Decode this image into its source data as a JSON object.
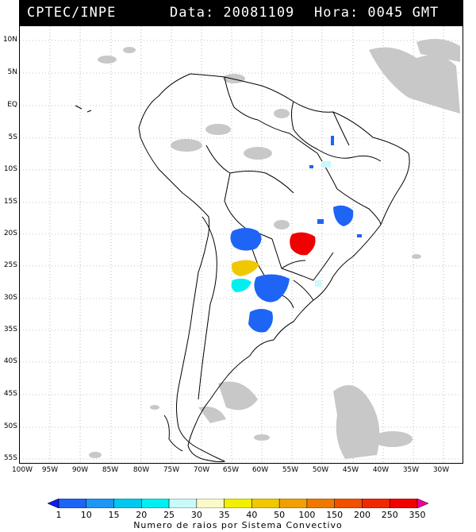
{
  "header": {
    "source": "CPTEC/INPE",
    "date_label": "Data: 20081109",
    "time_label": "Hora: 0045 GMT"
  },
  "map": {
    "lat_labels": [
      "10N",
      "5N",
      "EQ",
      "5S",
      "10S",
      "15S",
      "20S",
      "25S",
      "30S",
      "35S",
      "40S",
      "45S",
      "50S",
      "55S"
    ],
    "lon_labels": [
      "100W",
      "95W",
      "90W",
      "85W",
      "80W",
      "75W",
      "70W",
      "65W",
      "60W",
      "55W",
      "50W",
      "45W",
      "40W",
      "35W",
      "30W"
    ],
    "colors": {
      "land_outline": "#000000",
      "cloud_gray": "#c8c8c8",
      "grid": "#888888"
    }
  },
  "colorbar": {
    "labels": [
      "1",
      "10",
      "15",
      "20",
      "25",
      "30",
      "35",
      "40",
      "50",
      "100",
      "150",
      "200",
      "250",
      "350"
    ],
    "colors": [
      "#0a1ff0",
      "#1e64f5",
      "#1e96f5",
      "#00c8f0",
      "#00f0f0",
      "#c8fafa",
      "#fafac8",
      "#f0f000",
      "#f0c800",
      "#f0a000",
      "#f07800",
      "#f05000",
      "#f02800",
      "#f00000",
      "#f00096"
    ],
    "caption": "Numero de raios por Sistema Convectivo"
  }
}
